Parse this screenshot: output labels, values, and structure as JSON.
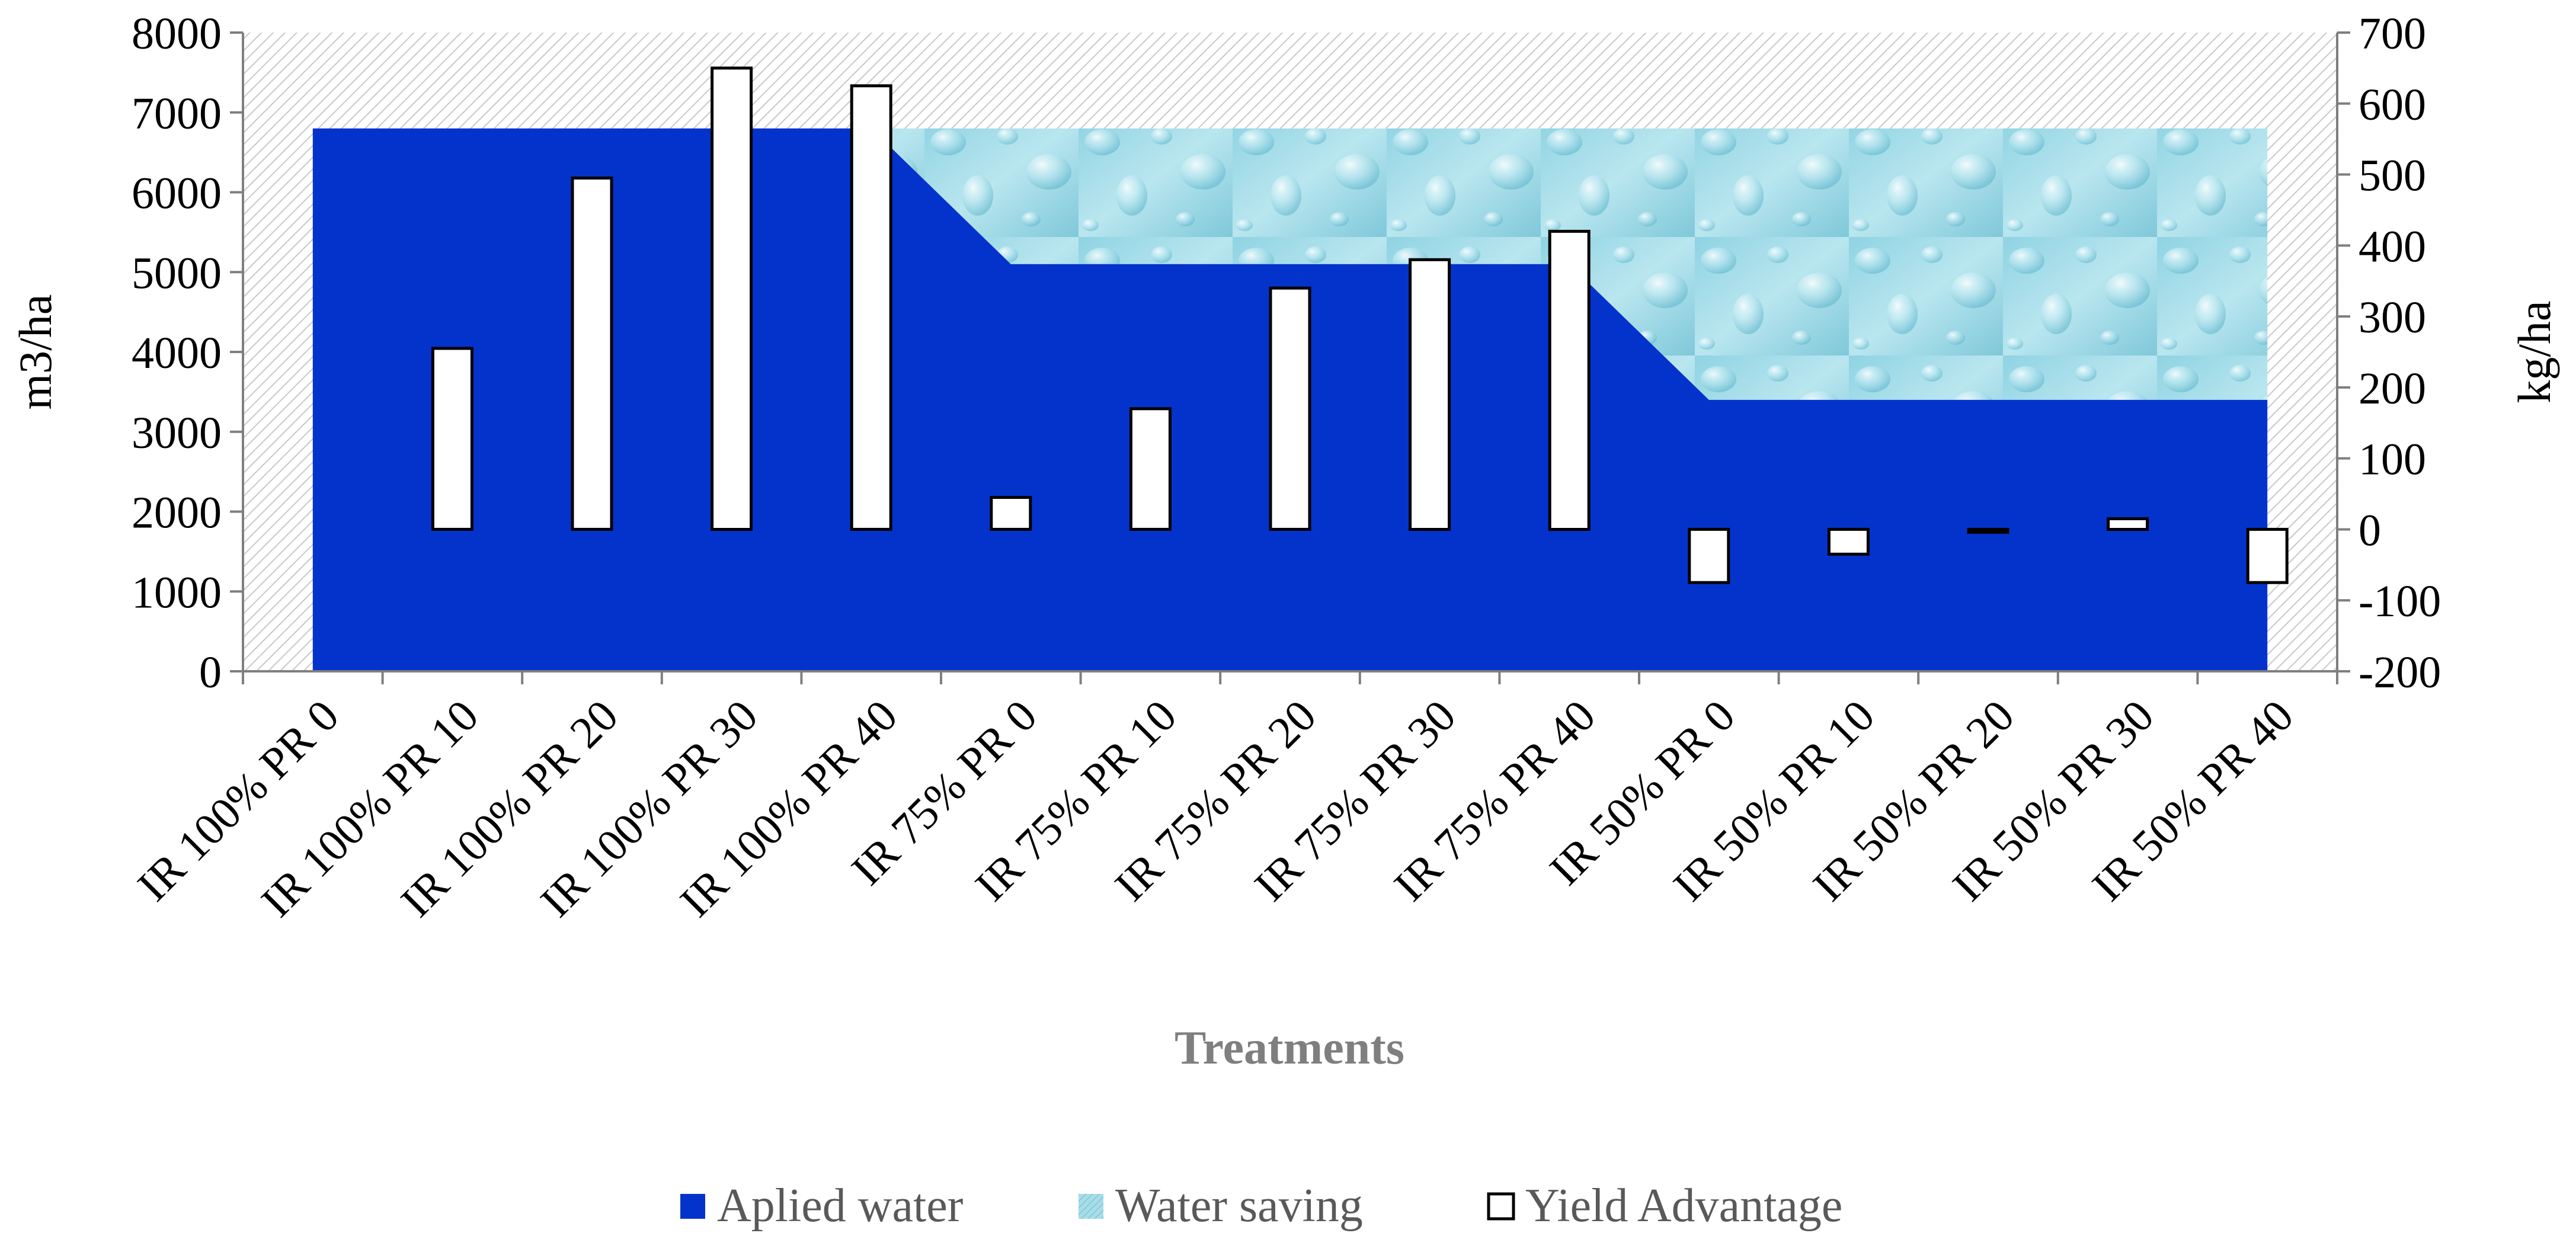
{
  "chart_data": {
    "type": "bar",
    "xlabel": "Treatments",
    "ylabel_left": "m3/ha",
    "ylabel_right": "kg/ha",
    "ylim_left": [
      0,
      8000
    ],
    "yticks_left": [
      "0",
      "1000",
      "2000",
      "3000",
      "4000",
      "5000",
      "6000",
      "7000",
      "8000"
    ],
    "ylim_right": [
      -200,
      700
    ],
    "yticks_right": [
      "-200",
      "-100",
      "0",
      "100",
      "200",
      "300",
      "400",
      "500",
      "600",
      "700"
    ],
    "grid": false,
    "legend_position": "bottom",
    "categories": [
      "IR 100% PR 0",
      "IR 100% PR 10",
      "IR 100% PR 20",
      "IR 100% PR 30",
      "IR 100% PR 40",
      "IR 75%  PR 0",
      "IR 75%  PR 10",
      "IR 75%  PR 20",
      "IR 75%  PR 30",
      "IR 75%  PR 40",
      "IR 50%  PR 0",
      "IR 50%  PR 10",
      "IR 50%  PR 20",
      "IR 50%  PR 30",
      "IR 50%  PR 40"
    ],
    "series": [
      {
        "name": "Aplied water",
        "type": "area",
        "axis": "left",
        "color": "#0433cc",
        "values": [
          6800,
          6800,
          6800,
          6800,
          6800,
          5100,
          5100,
          5100,
          5100,
          5100,
          3400,
          3400,
          3400,
          3400,
          3400
        ]
      },
      {
        "name": "Water saving",
        "type": "area",
        "axis": "left",
        "color": "#a8dde8",
        "values": [
          0,
          0,
          0,
          0,
          0,
          1700,
          1700,
          1700,
          1700,
          1700,
          3400,
          3400,
          3400,
          3400,
          3400
        ]
      },
      {
        "name": "Yield Advantage",
        "type": "bar",
        "axis": "right",
        "color": "#ffffff",
        "values": [
          null,
          255,
          495,
          650,
          625,
          45,
          170,
          340,
          380,
          420,
          -75,
          -35,
          -3,
          15,
          -75
        ]
      }
    ]
  }
}
